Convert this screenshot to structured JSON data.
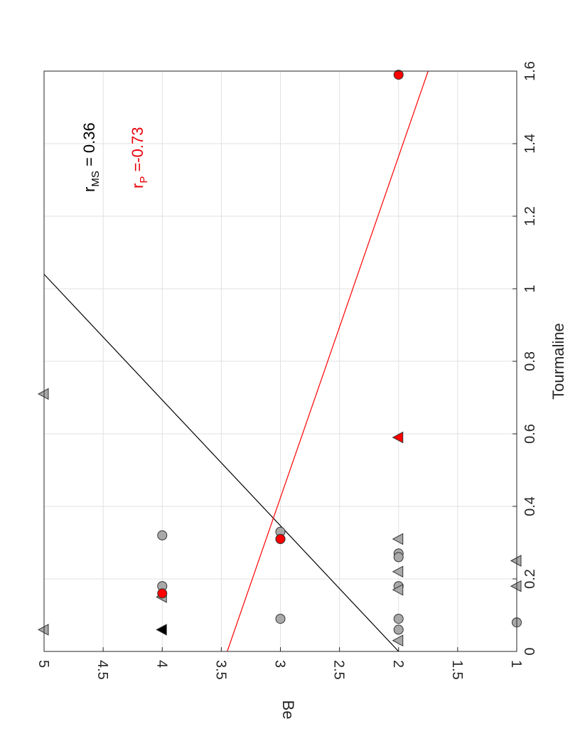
{
  "chart_data": {
    "type": "scatter",
    "title": "",
    "xlabel": "Tourmaline",
    "ylabel": "Be",
    "xlim": [
      0,
      1.6
    ],
    "ylim": [
      1,
      5
    ],
    "xticks": [
      "0",
      "0.2",
      "0.4",
      "0.6",
      "0.8",
      "1",
      "1.2",
      "1.4",
      "1.6"
    ],
    "yticks": [
      "1",
      "1.5",
      "2",
      "2.5",
      "3",
      "3.5",
      "4",
      "4.5",
      "5"
    ],
    "grid": true,
    "orientation": "rotated 90° counter-clockwise",
    "annotations": [
      {
        "base": "r",
        "sub": "MS",
        "text": " = 0.36",
        "color": "#000000"
      },
      {
        "base": "r",
        "sub": "P",
        "text": " =-0.73",
        "color": "#e8000b"
      }
    ],
    "series": [
      {
        "marker": "circle",
        "color": "#a9a9a9",
        "points": [
          [
            0.32,
            4
          ],
          [
            0.18,
            4
          ],
          [
            0.33,
            3
          ],
          [
            0.31,
            3
          ],
          [
            0.09,
            3
          ],
          [
            0.27,
            2
          ],
          [
            0.26,
            2
          ],
          [
            0.18,
            2
          ],
          [
            0.09,
            2
          ],
          [
            0.06,
            2
          ],
          [
            0.08,
            1
          ]
        ]
      },
      {
        "marker": "triangle",
        "color": "#a9a9a9",
        "points": [
          [
            0.06,
            5
          ],
          [
            0.71,
            5
          ],
          [
            0.15,
            4
          ],
          [
            0.31,
            2
          ],
          [
            0.22,
            2
          ],
          [
            0.17,
            2
          ],
          [
            0.03,
            2
          ],
          [
            0.25,
            1
          ],
          [
            0.18,
            1
          ]
        ]
      },
      {
        "marker": "circle",
        "color": "#ff0000",
        "points": [
          [
            1.59,
            2
          ],
          [
            0.31,
            3
          ],
          [
            0.16,
            4
          ]
        ]
      },
      {
        "marker": "triangle",
        "color": "#ff0000",
        "points": [
          [
            0.59,
            2
          ]
        ]
      },
      {
        "marker": "triangle",
        "color": "#000000",
        "points": [
          [
            0.06,
            4
          ]
        ]
      }
    ],
    "fit_lines": [
      {
        "color": "#000000",
        "x": [
          0.0,
          1.04
        ],
        "y": [
          2.0,
          5.0
        ]
      },
      {
        "color": "#ff0000",
        "x": [
          0.0,
          1.6
        ],
        "y": [
          3.45,
          1.75
        ]
      }
    ]
  }
}
